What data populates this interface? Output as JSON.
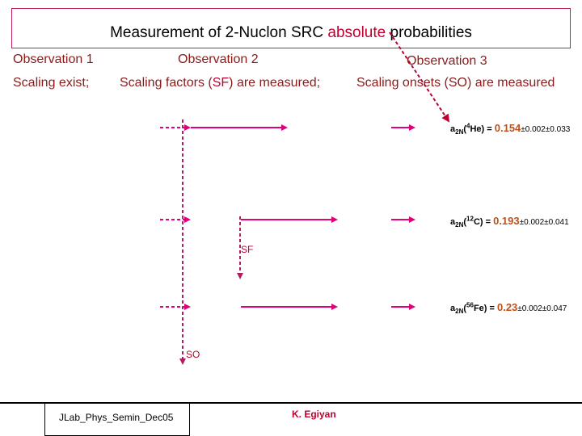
{
  "title": {
    "before": "Measurement of 2-Nuclon SRC ",
    "highlight": "absolute",
    "after": " probabilities"
  },
  "observations": [
    {
      "heading": "Observation 1",
      "text": "Scaling exist;"
    },
    {
      "heading": "Observation 2",
      "text_before": "Scaling factors (",
      "text_highlight": "SF",
      "text_after": ") are measured;"
    },
    {
      "heading": "Observation 3",
      "text": "Scaling onsets (SO) are measured"
    }
  ],
  "results": [
    {
      "prefix": "a",
      "sub": "2N",
      "sup": "4",
      "nucleus": "He",
      "eq": ") = ",
      "value": "0.154",
      "err": "±0.002±0.033"
    },
    {
      "prefix": "a",
      "sub": "2N",
      "sup": "12",
      "nucleus": "C",
      "eq": ") = ",
      "value": "0.193",
      "err": "±0.002±0.041"
    },
    {
      "prefix": "a",
      "sub": "2N",
      "sup": "56",
      "nucleus": "Fe",
      "eq": ") = ",
      "value": "0.23",
      "err": "±0.002±0.047"
    }
  ],
  "labels": {
    "sf": "SF",
    "so": "SO"
  },
  "footer": {
    "left": "JLab_Phys_Semin_Dec05",
    "center": "K. Egiyan"
  },
  "colors": {
    "accent": "#c00030",
    "arrow": "#e0007a",
    "value": "#c0501a",
    "dotted": "#c00030"
  }
}
